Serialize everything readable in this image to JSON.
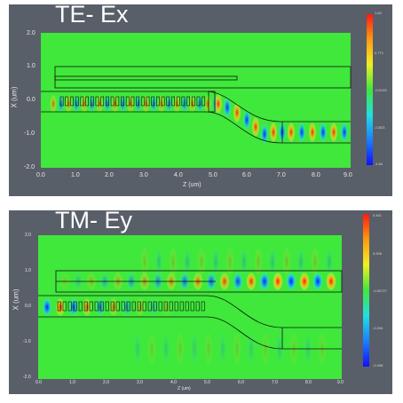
{
  "panels": [
    {
      "title": "TE- Ex",
      "xlabel": "Z (um)",
      "ylabel": "X (um)",
      "xticks": [
        "0.0",
        "1.0",
        "2.0",
        "3.0",
        "4.0",
        "5.0",
        "6.0",
        "7.0",
        "8.0",
        "9.0"
      ],
      "yticks": [
        "2.0",
        "1.0",
        "0.0",
        "-1.0",
        "-2.0"
      ],
      "cbar_labels": [
        "1.64",
        "0.771",
        "-0.0133",
        "-0.823",
        "-1.64"
      ]
    },
    {
      "title": "TM- Ey",
      "xlabel": "Z (um)",
      "ylabel": "X (um)",
      "xticks": [
        "0.0",
        "1.0",
        "2.0",
        "3.0",
        "4.0",
        "5.0",
        "6.0",
        "7.0",
        "8.0",
        "9.0"
      ],
      "yticks": [
        "2.0",
        "1.0",
        "0.0",
        "-1.0",
        "-2.0"
      ],
      "cbar_labels": [
        "0.401",
        "0.206",
        "-0.00727",
        "-0.204",
        "-0.408"
      ]
    }
  ],
  "colors": {
    "panel_bg": "#595f68",
    "field_green": "#3fe83a",
    "positive": "#ff2a10",
    "negative": "#1a3cff",
    "outline": "#101010"
  }
}
